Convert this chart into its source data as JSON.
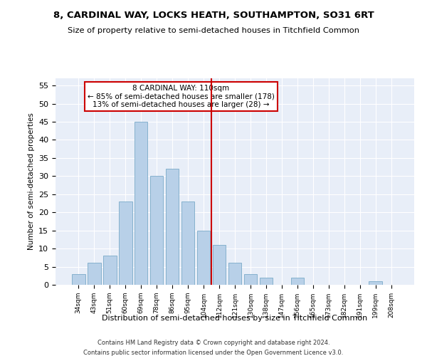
{
  "title": "8, CARDINAL WAY, LOCKS HEATH, SOUTHAMPTON, SO31 6RT",
  "subtitle": "Size of property relative to semi-detached houses in Titchfield Common",
  "xlabel": "Distribution of semi-detached houses by size in Titchfield Common",
  "ylabel": "Number of semi-detached properties",
  "categories": [
    "34sqm",
    "43sqm",
    "51sqm",
    "60sqm",
    "69sqm",
    "78sqm",
    "86sqm",
    "95sqm",
    "104sqm",
    "112sqm",
    "121sqm",
    "130sqm",
    "138sqm",
    "147sqm",
    "156sqm",
    "165sqm",
    "173sqm",
    "182sqm",
    "191sqm",
    "199sqm",
    "208sqm"
  ],
  "values": [
    3,
    6,
    8,
    23,
    45,
    30,
    32,
    23,
    15,
    11,
    6,
    3,
    2,
    0,
    2,
    0,
    0,
    0,
    0,
    1,
    0
  ],
  "bar_color": "#b8d0e8",
  "bar_edge_color": "#7aaac8",
  "vline_x": 8.5,
  "vline_color": "#cc0000",
  "annotation_title": "8 CARDINAL WAY: 110sqm",
  "annotation_line1": "← 85% of semi-detached houses are smaller (178)",
  "annotation_line2": "13% of semi-detached houses are larger (28) →",
  "annotation_box_color": "#ffffff",
  "annotation_box_edge": "#cc0000",
  "ylim": [
    0,
    57
  ],
  "yticks": [
    0,
    5,
    10,
    15,
    20,
    25,
    30,
    35,
    40,
    45,
    50,
    55
  ],
  "background_color": "#e8eef8",
  "footer1": "Contains HM Land Registry data © Crown copyright and database right 2024.",
  "footer2": "Contains public sector information licensed under the Open Government Licence v3.0."
}
